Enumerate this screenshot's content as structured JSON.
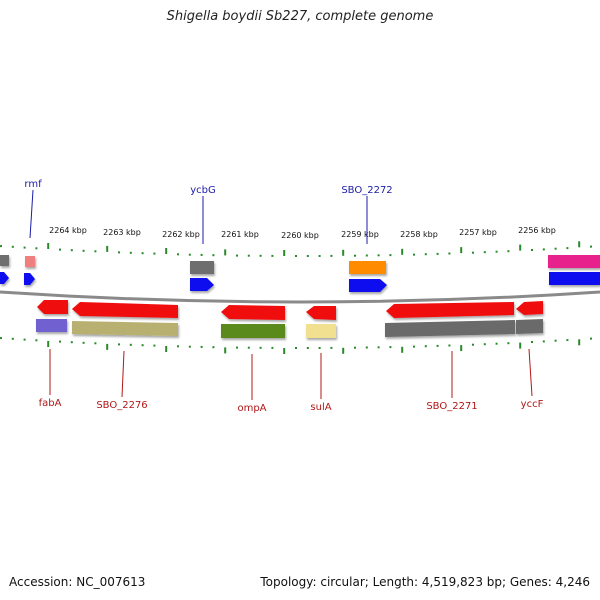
{
  "title": "Shigella boydii Sb227, complete genome",
  "footer": {
    "accession": "Accession: NC_007613",
    "summary": "Topology: circular; Length: 4,519,823 bp; Genes: 4,246"
  },
  "colors": {
    "backbone": "#8a8a8a",
    "ticks": "#2a8a2a",
    "top_labels": "#1c1ca8",
    "bottom_labels": "#b01818"
  },
  "scale_labels": [
    "2264 kbp",
    "2263 kbp",
    "2262 kbp",
    "2261 kbp",
    "2260 kbp",
    "2259 kbp",
    "2258 kbp",
    "2257 kbp",
    "2256 kbp"
  ],
  "labels_top": [
    "rmf",
    "ycbG",
    "SBO_2272"
  ],
  "labels_bottom": [
    "fabA",
    "SBO_2276",
    "ompA",
    "sulA",
    "SBO_2271",
    "yccF"
  ]
}
